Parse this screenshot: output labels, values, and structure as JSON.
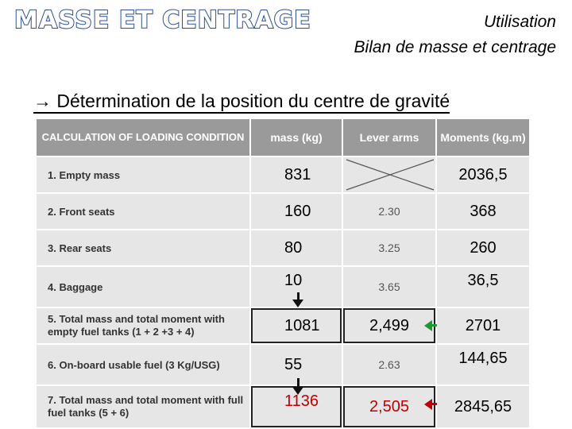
{
  "header": {
    "title": "MASSE ET CENTRAGE",
    "right_line1": "Utilisation",
    "right_line2": "Bilan de masse et centrage"
  },
  "section": {
    "heading": "→ Détermination de la position du centre de gravité"
  },
  "table": {
    "headers": [
      "CALCULATION OF LOADING CONDITION",
      "mass (kg)",
      "Lever arms",
      "Moments (kg.m)"
    ],
    "rows": [
      {
        "label": "1. Empty mass",
        "mass": "831",
        "lever": "",
        "moment": "2036,5"
      },
      {
        "label": "2. Front seats",
        "mass": "160",
        "lever": "2.30",
        "moment": "368"
      },
      {
        "label": "3. Rear seats",
        "mass": "80",
        "lever": "3.25",
        "moment": "260"
      },
      {
        "label": "4. Baggage",
        "mass": "10",
        "lever": "3.65",
        "moment": "36,5"
      },
      {
        "label": "5. Total mass and total moment with empty fuel tanks (1 + 2 +3 + 4)",
        "mass": "1081",
        "lever": "2,499",
        "moment": "2701"
      },
      {
        "label": "6. On-board usable fuel (3 Kg/USG)",
        "mass": "55",
        "lever": "2.63",
        "moment": "144,65"
      },
      {
        "label": "7. Total mass and total moment with full fuel tanks (5 + 6)",
        "mass": "1136",
        "lever": "2,505",
        "moment": "2845,65"
      }
    ]
  },
  "colors": {
    "title_outline": "#2c4f8f",
    "header_bg": "#9a9a9a",
    "cell_bg": "#e6e6e6",
    "green_arrow": "#1c9a2e",
    "red": "#c00000"
  }
}
